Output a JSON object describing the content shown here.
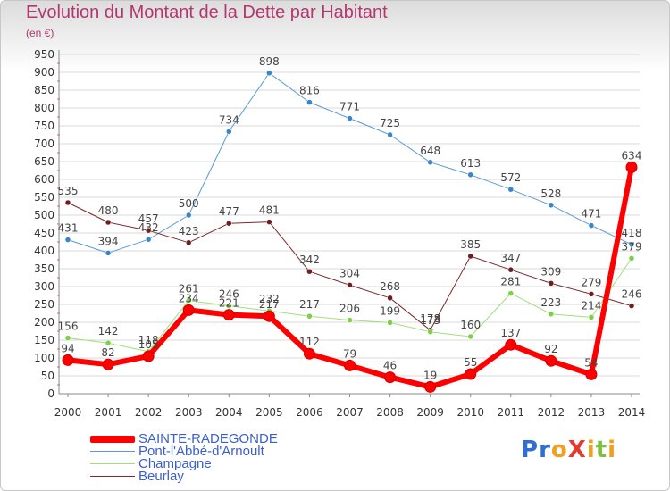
{
  "header": {
    "title": "Evolution du Montant de la Dette par Habitant",
    "unit": "(en €)"
  },
  "logo": {
    "text": "ProXiti",
    "colors": [
      "#2f6fd0",
      "#f0a020",
      "#e53a2e",
      "#7fbf3f"
    ]
  },
  "chart_data": {
    "type": "line",
    "title": "Evolution du Montant de la Dette par Habitant",
    "ylabel": "(en €)",
    "ylim": [
      0,
      950
    ],
    "yticks": [
      0,
      50,
      100,
      150,
      200,
      250,
      300,
      350,
      400,
      450,
      500,
      550,
      600,
      650,
      700,
      750,
      800,
      850,
      900,
      950
    ],
    "grid": true,
    "legend_position": "bottom-left",
    "categories": [
      "2000",
      "2001",
      "2002",
      "2003",
      "2004",
      "2005",
      "2006",
      "2007",
      "2008",
      "2009",
      "2010",
      "2011",
      "2012",
      "2013",
      "2014"
    ],
    "series": [
      {
        "name": "Pont-l'Abbé-d'Arnoult",
        "color": "#5b9bd5",
        "marker": "#3a86c8",
        "width": 1,
        "values": [
          431,
          394,
          432,
          500,
          734,
          898,
          816,
          771,
          725,
          648,
          613,
          572,
          528,
          471,
          418
        ]
      },
      {
        "name": "Beurlay",
        "color": "#7a2a2a",
        "marker": "#6e1e1e",
        "width": 1,
        "values": [
          535,
          480,
          457,
          423,
          477,
          481,
          342,
          304,
          268,
          178,
          385,
          347,
          309,
          279,
          246
        ]
      },
      {
        "name": "Champagne",
        "color": "#9ee07a",
        "marker": "#7ed04a",
        "width": 1,
        "values": [
          156,
          142,
          118,
          261,
          246,
          232,
          217,
          206,
          199,
          173,
          160,
          281,
          223,
          214,
          379
        ]
      },
      {
        "name": "SAINTE-RADEGONDE",
        "color": "#ff0000",
        "marker": "#ff0000",
        "width": 6,
        "values": [
          94,
          82,
          105,
          234,
          221,
          217,
          112,
          79,
          46,
          19,
          55,
          137,
          92,
          54,
          634
        ]
      }
    ],
    "legend_order": [
      "SAINTE-RADEGONDE",
      "Pont-l'Abbé-d'Arnoult",
      "Champagne",
      "Beurlay"
    ]
  }
}
